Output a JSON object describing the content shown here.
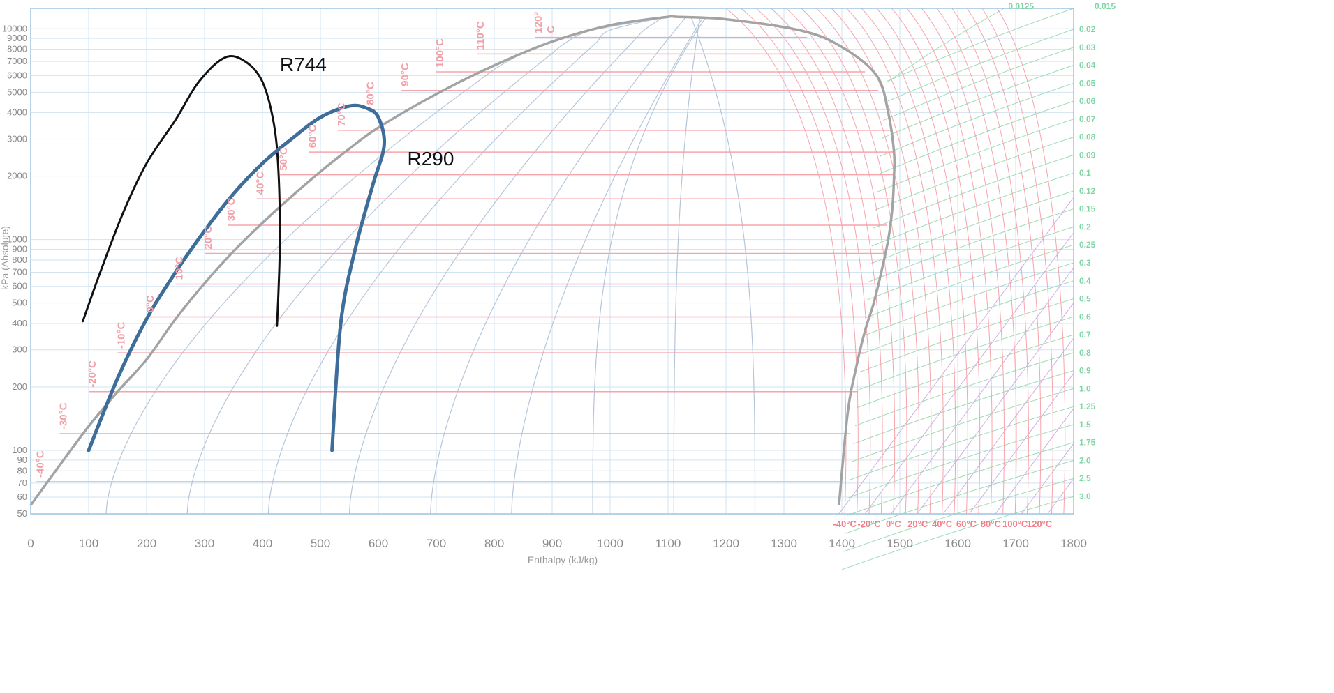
{
  "chart_data": {
    "type": "line",
    "xlabel": "Enthalpy (kJ/kg)",
    "ylabel": "kPa (Absolute)",
    "xlim": [
      0,
      1800
    ],
    "ylim": [
      50,
      12500
    ],
    "yscale": "log",
    "grid": true,
    "x_ticks": [
      "0",
      "100",
      "200",
      "300",
      "400",
      "500",
      "600",
      "700",
      "800",
      "900",
      "1000",
      "1100",
      "1200",
      "1300",
      "1400",
      "1500",
      "1600",
      "1700",
      "1800"
    ],
    "y_ticks": [
      "50",
      "60",
      "70",
      "80",
      "90",
      "100",
      "200",
      "300",
      "400",
      "500",
      "600",
      "700",
      "800",
      "900",
      "1000",
      "2000",
      "3000",
      "4000",
      "5000",
      "6000",
      "7000",
      "8000",
      "9000",
      "10000"
    ],
    "colors": {
      "dome": "#a3a3a3",
      "isotherm": "#f5a5ac",
      "isentrope": "#b4c6d9",
      "grid": "#d3e3f0",
      "volume": "#9ddcb6",
      "extra": "#d0aee0",
      "r744": "#111111",
      "r290": "#3d6d98"
    },
    "saturation_dome": {
      "liquid": [
        [
          0,
          55
        ],
        [
          50,
          85
        ],
        [
          100,
          130
        ],
        [
          150,
          190
        ],
        [
          200,
          270
        ],
        [
          250,
          420
        ],
        [
          300,
          620
        ],
        [
          350,
          880
        ],
        [
          400,
          1200
        ],
        [
          450,
          1600
        ],
        [
          500,
          2100
        ],
        [
          550,
          2700
        ],
        [
          600,
          3400
        ],
        [
          700,
          4900
        ],
        [
          800,
          6700
        ],
        [
          900,
          8700
        ],
        [
          1000,
          10400
        ],
        [
          1100,
          11400
        ]
      ],
      "vapor": [
        [
          1115,
          11400
        ],
        [
          1200,
          11100
        ],
        [
          1330,
          9800
        ],
        [
          1400,
          8200
        ],
        [
          1460,
          6000
        ],
        [
          1480,
          4000
        ],
        [
          1490,
          2600
        ],
        [
          1490,
          2000
        ],
        [
          1487,
          1400
        ],
        [
          1480,
          1000
        ],
        [
          1468,
          700
        ],
        [
          1455,
          500
        ],
        [
          1440,
          370
        ],
        [
          1425,
          250
        ],
        [
          1410,
          150
        ],
        [
          1395,
          55
        ]
      ]
    },
    "isotherms": [
      {
        "label": "-40°C",
        "h_liq": 10,
        "h_vap": 1400,
        "p": 71
      },
      {
        "label": "-30°C",
        "h_liq": 50,
        "h_vap": 1415,
        "p": 120
      },
      {
        "label": "-20°C",
        "h_liq": 100,
        "h_vap": 1428,
        "p": 190
      },
      {
        "label": "-10°C",
        "h_liq": 150,
        "h_vap": 1442,
        "p": 290
      },
      {
        "label": "0°C",
        "h_liq": 200,
        "h_vap": 1455,
        "p": 430
      },
      {
        "label": "10°C",
        "h_liq": 250,
        "h_vap": 1463,
        "p": 615
      },
      {
        "label": "20°C",
        "h_liq": 300,
        "h_vap": 1472,
        "p": 860
      },
      {
        "label": "30°C",
        "h_liq": 340,
        "h_vap": 1478,
        "p": 1170
      },
      {
        "label": "40°C",
        "h_liq": 390,
        "h_vap": 1484,
        "p": 1560
      },
      {
        "label": "50°C",
        "h_liq": 430,
        "h_vap": 1488,
        "p": 2030
      },
      {
        "label": "60°C",
        "h_liq": 480,
        "h_vap": 1490,
        "p": 2600
      },
      {
        "label": "70°C",
        "h_liq": 530,
        "h_vap": 1488,
        "p": 3300
      },
      {
        "label": "80°C",
        "h_liq": 580,
        "h_vap": 1482,
        "p": 4150
      },
      {
        "label": "90°C",
        "h_liq": 640,
        "h_vap": 1463,
        "p": 5100
      },
      {
        "label": "100°C",
        "h_liq": 700,
        "h_vap": 1440,
        "p": 6250
      },
      {
        "label": "110°C",
        "h_liq": 770,
        "h_vap": 1400,
        "p": 7600
      },
      {
        "label": "120°C",
        "h_liq": 870,
        "h_vap": 1340,
        "p": 9100
      }
    ],
    "liquid_label_text": {
      "120°C": [
        "120°",
        "C"
      ]
    },
    "isentrope_x_at_bottom": [
      130,
      270,
      410,
      550,
      690,
      830,
      970,
      1110,
      1250
    ],
    "isentrope_x_at_top": [
      930,
      980,
      1025,
      1080,
      1130,
      1160,
      1165,
      1155,
      1140
    ],
    "superheat_isotherms_bottom": [
      "-40°C",
      "-20°C",
      "0°C",
      "20°C",
      "40°C",
      "60°C",
      "80°C",
      "100°C",
      "120°C"
    ],
    "specific_volume_labels": [
      "0.0125",
      "0.015",
      "0.02",
      "0.03",
      "0.04",
      "0.05",
      "0.06",
      "0.07",
      "0.08",
      "0.09",
      "0.1",
      "0.12",
      "0.15",
      "0.2",
      "0.25",
      "0.3",
      "0.4",
      "0.5",
      "0.6",
      "0.7",
      "0.8",
      "0.9",
      "1.0",
      "1.25",
      "1.5",
      "1.75",
      "2.0",
      "2.5",
      "3.0"
    ],
    "series": [
      {
        "name": "R744",
        "points": [
          [
            90,
            410
          ],
          [
            120,
            700
          ],
          [
            160,
            1350
          ],
          [
            200,
            2300
          ],
          [
            250,
            3700
          ],
          [
            290,
            5600
          ],
          [
            335,
            7300
          ],
          [
            370,
            7000
          ],
          [
            400,
            5600
          ],
          [
            420,
            3500
          ],
          [
            428,
            2000
          ],
          [
            430,
            1000
          ],
          [
            428,
            600
          ],
          [
            425,
            390
          ]
        ]
      },
      {
        "name": "R290",
        "points": [
          [
            100,
            100
          ],
          [
            150,
            220
          ],
          [
            200,
            420
          ],
          [
            250,
            700
          ],
          [
            300,
            1100
          ],
          [
            350,
            1650
          ],
          [
            400,
            2300
          ],
          [
            450,
            3000
          ],
          [
            500,
            3800
          ],
          [
            550,
            4300
          ],
          [
            580,
            4200
          ],
          [
            600,
            3800
          ],
          [
            610,
            2800
          ],
          [
            590,
            1800
          ],
          [
            560,
            900
          ],
          [
            535,
            400
          ],
          [
            520,
            100
          ]
        ]
      }
    ]
  }
}
